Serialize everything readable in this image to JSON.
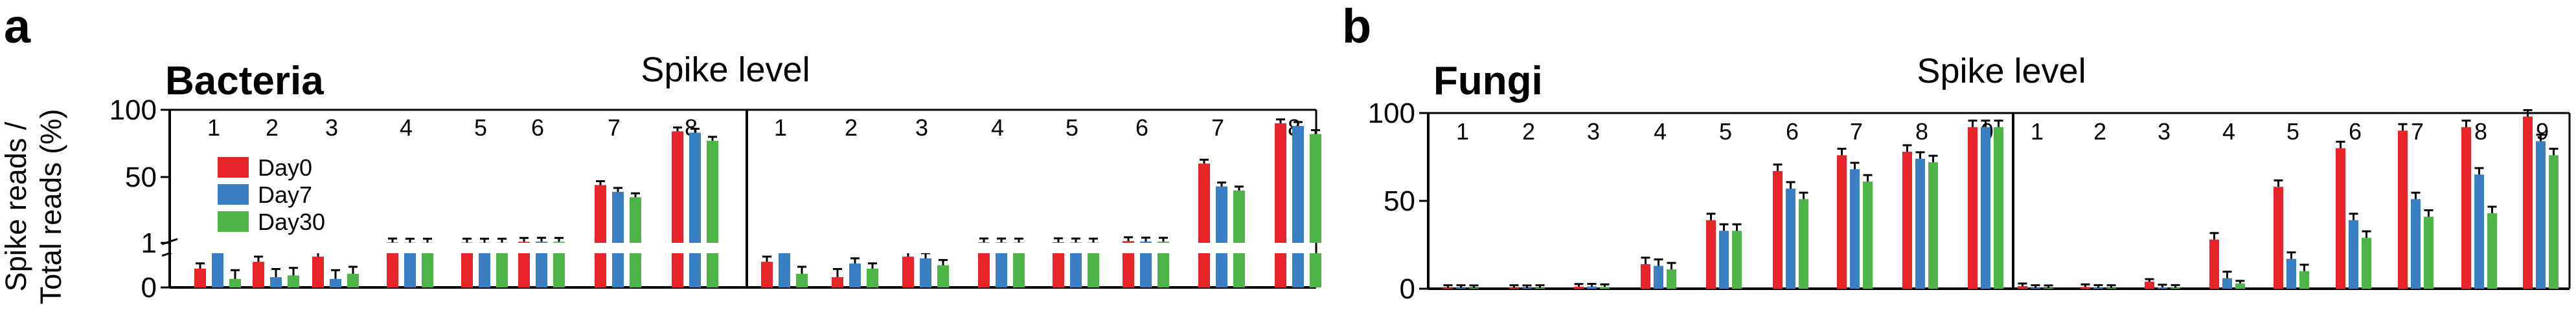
{
  "colors": {
    "Day0": "#e8242a",
    "Day7": "#3a7fc4",
    "Day30": "#4db548",
    "axis": "#000000"
  },
  "legend": {
    "placement": "top-left of panel a",
    "items": [
      "Day0",
      "Day7",
      "Day30"
    ]
  },
  "labels": {
    "ylabel_line1": "Spike reads /",
    "ylabel_line2": "Total reads (%)",
    "panel_a": "a",
    "panel_b": "b",
    "panel_a_title": "Bacteria",
    "panel_b_title": "Fungi",
    "top_label_a": "Spike level",
    "top_label_b": "Spike level"
  },
  "chart_data": [
    {
      "type": "bar",
      "panel": "a",
      "title": "Bacteria",
      "top_label": "Spike level",
      "ylabel": "Spike reads / Total reads (%)",
      "axis": "broken",
      "yticks": [
        "100",
        "50",
        "1",
        "0"
      ],
      "lower_range": [
        0,
        1
      ],
      "upper_range": [
        1,
        100
      ],
      "series_names": [
        "Day0",
        "Day7",
        "Day30"
      ],
      "subplots": [
        {
          "categories": [
            "1",
            "2",
            "3",
            "4",
            "5",
            "6",
            "7",
            "8"
          ],
          "series": [
            {
              "name": "Day0",
              "values": [
                0.55,
                0.75,
                0.9,
                1.35,
                1.25,
                1.8,
                44,
                84
              ]
            },
            {
              "name": "Day7",
              "values": [
                1.0,
                0.3,
                0.25,
                1.2,
                1.2,
                1.9,
                39,
                83
              ]
            },
            {
              "name": "Day30",
              "values": [
                0.25,
                0.35,
                0.4,
                1.2,
                1.2,
                1.8,
                35,
                77
              ]
            }
          ]
        },
        {
          "categories": [
            "1",
            "2",
            "3",
            "4",
            "5",
            "6",
            "7",
            "8"
          ],
          "series": [
            {
              "name": "Day0",
              "values": [
                0.75,
                0.3,
                0.9,
                1.4,
                1.5,
                2.3,
                60,
                90
              ]
            },
            {
              "name": "Day7",
              "values": [
                1.0,
                0.7,
                0.85,
                1.35,
                1.35,
                2.0,
                43,
                88
              ]
            },
            {
              "name": "Day30",
              "values": [
                0.4,
                0.55,
                0.65,
                1.3,
                1.3,
                1.9,
                40,
                82
              ]
            }
          ]
        }
      ]
    },
    {
      "type": "bar",
      "panel": "b",
      "title": "Fungi",
      "top_label": "Spike level",
      "ylim": [
        0,
        100
      ],
      "yticks": [
        "100",
        "50",
        "0"
      ],
      "series_names": [
        "Day0",
        "Day7",
        "Day30"
      ],
      "subplots": [
        {
          "categories": [
            "1",
            "2",
            "3",
            "4",
            "5",
            "6",
            "7",
            "8",
            "9"
          ],
          "series": [
            {
              "name": "Day0",
              "values": [
                0.5,
                0.5,
                1.2,
                14,
                39,
                67,
                76,
                78,
                92
              ]
            },
            {
              "name": "Day7",
              "values": [
                0.5,
                0.4,
                1.3,
                13,
                33,
                57,
                68,
                74,
                92
              ]
            },
            {
              "name": "Day30",
              "values": [
                0.4,
                0.5,
                1.0,
                11,
                33,
                51,
                61,
                72,
                92
              ]
            }
          ]
        },
        {
          "categories": [
            "1",
            "2",
            "3",
            "4",
            "5",
            "6",
            "7",
            "8",
            "9"
          ],
          "series": [
            {
              "name": "Day0",
              "values": [
                1.5,
                1.0,
                4.0,
                28,
                58,
                80,
                90,
                92,
                98
              ]
            },
            {
              "name": "Day7",
              "values": [
                0.5,
                0.6,
                0.8,
                6,
                17,
                39,
                51,
                65,
                84
              ]
            },
            {
              "name": "Day30",
              "values": [
                0.4,
                0.5,
                0.6,
                3,
                10,
                29,
                41,
                43,
                76
              ]
            }
          ]
        }
      ]
    }
  ]
}
